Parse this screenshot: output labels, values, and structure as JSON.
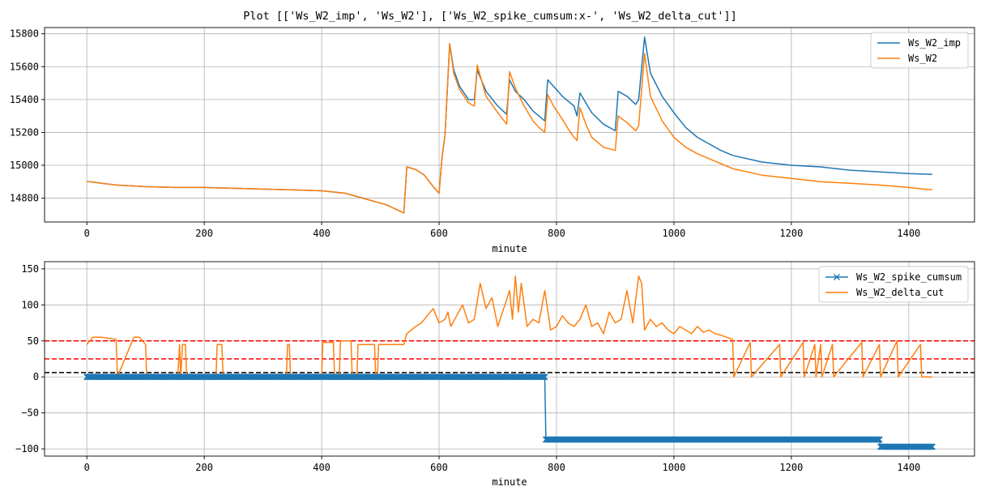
{
  "figure": {
    "title": "Plot [['Ws_W2_imp', 'Ws_W2'], ['Ws_W2_spike_cumsum:x-', 'Ws_W2_delta_cut']]"
  },
  "colors": {
    "blue": "#1f77b4",
    "orange": "#ff7f0e",
    "red": "#ff0000",
    "black": "#000000",
    "grid": "#b0b0b0"
  },
  "chart_data": [
    {
      "type": "line",
      "xlabel": "minute",
      "ylabel": "",
      "xlim": [
        -72,
        1512
      ],
      "ylim": [
        14655,
        15838
      ],
      "grid": true,
      "legend": "top-right",
      "xticks": [
        0,
        200,
        400,
        600,
        800,
        1000,
        1200,
        1400
      ],
      "yticks": [
        14800,
        15000,
        15200,
        15400,
        15600,
        15800
      ],
      "series": [
        {
          "name": "Ws_W2_imp",
          "color": "#1f77b4",
          "x": [
            0,
            5,
            50,
            100,
            150,
            200,
            250,
            300,
            350,
            400,
            440,
            480,
            510,
            540,
            545,
            560,
            575,
            590,
            600,
            605,
            610,
            618,
            625,
            635,
            650,
            660,
            665,
            680,
            700,
            715,
            720,
            730,
            745,
            760,
            770,
            780,
            785,
            795,
            810,
            820,
            830,
            835,
            840,
            850,
            860,
            880,
            900,
            905,
            920,
            935,
            940,
            950,
            960,
            980,
            1000,
            1020,
            1040,
            1060,
            1080,
            1100,
            1150,
            1200,
            1250,
            1300,
            1350,
            1400,
            1440
          ],
          "y": [
            14900,
            14900,
            14880,
            14870,
            14865,
            14865,
            14860,
            14855,
            14850,
            14845,
            14830,
            14790,
            14760,
            14710,
            14990,
            14975,
            14940,
            14870,
            14830,
            15050,
            15180,
            15740,
            15580,
            15480,
            15400,
            15400,
            15580,
            15450,
            15360,
            15310,
            15520,
            15450,
            15400,
            15330,
            15300,
            15270,
            15520,
            15480,
            15420,
            15390,
            15360,
            15300,
            15440,
            15380,
            15320,
            15250,
            15210,
            15450,
            15420,
            15370,
            15400,
            15780,
            15560,
            15420,
            15320,
            15230,
            15170,
            15130,
            15090,
            15060,
            15020,
            15000,
            14990,
            14970,
            14960,
            14950,
            14945
          ]
        },
        {
          "name": "Ws_W2",
          "color": "#ff7f0e",
          "x": [
            0,
            5,
            50,
            100,
            150,
            200,
            250,
            300,
            350,
            400,
            440,
            480,
            510,
            540,
            545,
            560,
            575,
            590,
            600,
            605,
            610,
            618,
            625,
            635,
            650,
            660,
            665,
            680,
            700,
            715,
            720,
            730,
            745,
            760,
            770,
            780,
            785,
            795,
            810,
            820,
            830,
            835,
            840,
            850,
            860,
            880,
            900,
            905,
            920,
            935,
            940,
            950,
            960,
            980,
            1000,
            1020,
            1040,
            1060,
            1080,
            1100,
            1150,
            1200,
            1250,
            1300,
            1350,
            1400,
            1440
          ],
          "y": [
            14900,
            14900,
            14880,
            14870,
            14865,
            14865,
            14860,
            14855,
            14850,
            14845,
            14830,
            14790,
            14760,
            14710,
            14990,
            14975,
            14940,
            14870,
            14830,
            15050,
            15180,
            15740,
            15560,
            15460,
            15380,
            15360,
            15610,
            15420,
            15320,
            15250,
            15570,
            15470,
            15360,
            15270,
            15230,
            15200,
            15430,
            15360,
            15280,
            15220,
            15170,
            15150,
            15350,
            15250,
            15170,
            15110,
            15090,
            15300,
            15260,
            15210,
            15240,
            15680,
            15420,
            15270,
            15170,
            15110,
            15070,
            15040,
            15010,
            14980,
            14940,
            14920,
            14900,
            14890,
            14880,
            14865,
            14850
          ]
        }
      ]
    },
    {
      "type": "line",
      "xlabel": "minute",
      "ylabel": "",
      "xlim": [
        -72,
        1512
      ],
      "ylim": [
        -110,
        160
      ],
      "grid": true,
      "legend": "top-right",
      "xticks": [
        0,
        200,
        400,
        600,
        800,
        1000,
        1200,
        1400
      ],
      "yticks": [
        -100,
        -50,
        0,
        50,
        100,
        150
      ],
      "hlines": [
        {
          "y": 50,
          "color": "#ff0000",
          "style": "dashed"
        },
        {
          "y": 25,
          "color": "#ff0000",
          "style": "dashed"
        },
        {
          "y": 6,
          "color": "#000000",
          "style": "dashed"
        }
      ],
      "series": [
        {
          "name": "Ws_W2_spike_cumsum",
          "color": "#1f77b4",
          "marker": "x",
          "x": [
            0,
            50,
            100,
            150,
            200,
            250,
            300,
            350,
            400,
            450,
            500,
            550,
            600,
            650,
            700,
            780,
            782,
            800,
            850,
            900,
            950,
            1000,
            1050,
            1100,
            1150,
            1200,
            1250,
            1300,
            1350,
            1352,
            1400,
            1440
          ],
          "y": [
            0,
            0,
            0,
            0,
            0,
            0,
            0,
            0,
            0,
            0,
            0,
            0,
            0,
            0,
            0,
            0,
            -87,
            -87,
            -87,
            -87,
            -87,
            -87,
            -87,
            -87,
            -87,
            -87,
            -87,
            -87,
            -87,
            -97,
            -97,
            -97
          ]
        },
        {
          "name": "Ws_W2_delta_cut",
          "color": "#ff7f0e",
          "x": [
            0,
            10,
            25,
            50,
            52,
            80,
            90,
            100,
            102,
            155,
            158,
            160,
            163,
            168,
            170,
            220,
            222,
            230,
            232,
            340,
            342,
            345,
            347,
            400,
            402,
            420,
            422,
            430,
            432,
            450,
            452,
            460,
            462,
            490,
            492,
            495,
            497,
            540,
            545,
            560,
            570,
            580,
            590,
            600,
            610,
            615,
            620,
            630,
            640,
            650,
            660,
            670,
            680,
            690,
            700,
            710,
            720,
            725,
            730,
            735,
            740,
            750,
            760,
            770,
            780,
            790,
            800,
            810,
            820,
            830,
            840,
            850,
            860,
            870,
            880,
            890,
            900,
            910,
            920,
            930,
            940,
            945,
            950,
            960,
            970,
            980,
            990,
            1000,
            1010,
            1020,
            1030,
            1040,
            1050,
            1060,
            1070,
            1080,
            1090,
            1100,
            1102,
            1130,
            1132,
            1180,
            1182,
            1220,
            1222,
            1240,
            1242,
            1250,
            1252,
            1270,
            1272,
            1320,
            1322,
            1350,
            1352,
            1380,
            1382,
            1420,
            1422,
            1440
          ],
          "y": [
            45,
            55,
            55,
            52,
            0,
            55,
            55,
            45,
            0,
            0,
            45,
            0,
            45,
            45,
            0,
            0,
            45,
            45,
            0,
            0,
            45,
            45,
            0,
            0,
            48,
            48,
            0,
            0,
            50,
            50,
            0,
            0,
            45,
            45,
            0,
            0,
            45,
            45,
            60,
            70,
            75,
            85,
            95,
            75,
            80,
            90,
            70,
            85,
            100,
            75,
            80,
            130,
            95,
            110,
            70,
            95,
            120,
            80,
            140,
            90,
            130,
            70,
            80,
            75,
            120,
            65,
            70,
            85,
            75,
            70,
            80,
            100,
            70,
            75,
            60,
            90,
            75,
            80,
            120,
            75,
            140,
            130,
            65,
            80,
            70,
            75,
            65,
            60,
            70,
            65,
            60,
            70,
            62,
            65,
            60,
            58,
            55,
            52,
            0,
            48,
            0,
            45,
            0,
            48,
            0,
            45,
            0,
            45,
            0,
            45,
            0,
            48,
            0,
            45,
            0,
            50,
            0,
            45,
            0,
            0
          ]
        }
      ]
    }
  ]
}
